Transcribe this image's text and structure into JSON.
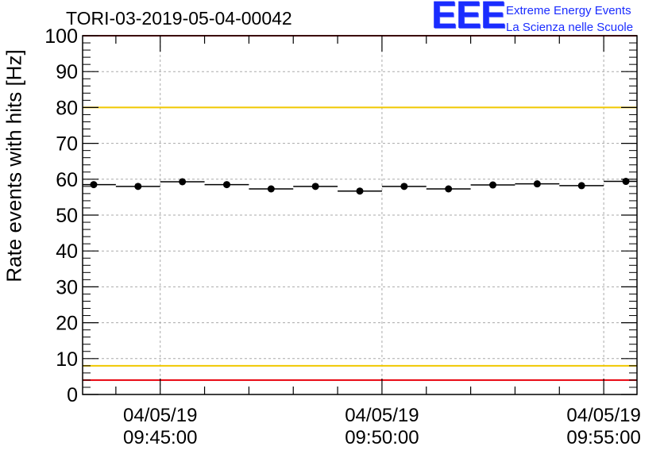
{
  "header": {
    "title": "TORI-03-2019-05-04-00042"
  },
  "logo": {
    "mark": "EEE",
    "line1": "Extreme Energy Events",
    "line2": "La Scienza nelle Scuole",
    "color": "#1a2cff"
  },
  "chart_data": {
    "type": "scatter",
    "ylabel": "Rate events with hits [Hz]",
    "xlabel": "",
    "ylim": [
      0,
      100
    ],
    "yticks": [
      0,
      10,
      20,
      30,
      40,
      50,
      60,
      70,
      80,
      90,
      100
    ],
    "xlim": [
      "09:43:15",
      "09:55:45"
    ],
    "x_tick_labels": [
      {
        "time": "09:45:00",
        "date": "04/05/19"
      },
      {
        "time": "09:50:00",
        "date": "04/05/19"
      },
      {
        "time": "09:55:00",
        "date": "04/05/19"
      }
    ],
    "bin_width_seconds": 60,
    "series": [
      {
        "marker": "filled-circle",
        "color": "#000000",
        "points": [
          {
            "x": "09:43:30",
            "y": 58.5
          },
          {
            "x": "09:44:30",
            "y": 58.0
          },
          {
            "x": "09:45:30",
            "y": 59.3
          },
          {
            "x": "09:46:30",
            "y": 58.5
          },
          {
            "x": "09:47:30",
            "y": 57.3
          },
          {
            "x": "09:48:30",
            "y": 58.0
          },
          {
            "x": "09:49:30",
            "y": 56.7
          },
          {
            "x": "09:50:30",
            "y": 58.0
          },
          {
            "x": "09:51:30",
            "y": 57.3
          },
          {
            "x": "09:52:30",
            "y": 58.4
          },
          {
            "x": "09:53:30",
            "y": 58.7
          },
          {
            "x": "09:54:30",
            "y": 58.2
          },
          {
            "x": "09:55:30",
            "y": 59.4
          }
        ]
      }
    ],
    "reference_lines": [
      {
        "y": 100,
        "color": "#e8000b"
      },
      {
        "y": 80,
        "color": "#f0c800"
      },
      {
        "y": 8,
        "color": "#f0c800"
      },
      {
        "y": 4,
        "color": "#e8000b"
      }
    ],
    "grid": true
  }
}
